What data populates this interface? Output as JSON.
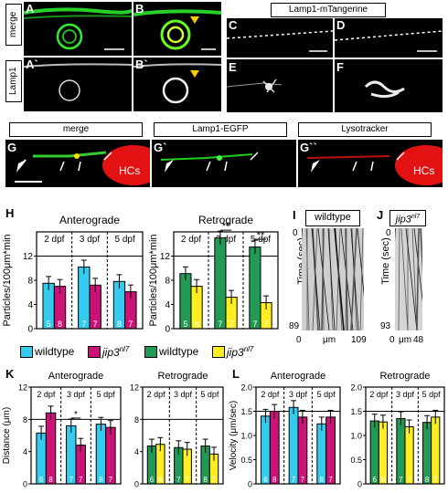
{
  "panel_letters": [
    "A",
    "B",
    "C",
    "D",
    "A`",
    "B`",
    "E",
    "F",
    "G",
    "G`",
    "G``",
    "H",
    "I",
    "J",
    "K",
    "L"
  ],
  "row_tags": {
    "merge": "merge",
    "lamp1": "Lamp1"
  },
  "header_cd": "Lamp1-mTangerine",
  "g_tags": [
    "merge",
    "Lamp1-EGFP",
    "Lysotracker"
  ],
  "hcs": "HCs",
  "colors": {
    "wildtype_ant": "#33ccee",
    "jip3_ant": "#cc1177",
    "wildtype_ret": "#229955",
    "jip3_ret": "#ffee22"
  },
  "legend": {
    "wt": "wildtype",
    "jip3": "jip3",
    "superscript": "nl7"
  },
  "kymo": {
    "i_title": "wildtype",
    "j_title": "jip3",
    "j_sup": "nl7",
    "ylabel": "Time (sec)",
    "xlabel": "μm",
    "i_y0": "0",
    "i_y1": "89",
    "i_x0": "0",
    "i_x1": "109",
    "j_y0": "0",
    "j_y1": "93",
    "j_x0": "0",
    "j_x1": "48"
  },
  "chart_data": [
    {
      "id": "H-anterograde",
      "type": "bar",
      "title": "Anterograde",
      "ylabel": "Particles/100μm*min",
      "ylim": [
        0,
        16
      ],
      "yticks": [
        "0",
        "4",
        "8",
        "12"
      ],
      "stages": [
        "2 dpf",
        "3 dpf",
        "5 dpf"
      ],
      "series": [
        {
          "name": "wildtype",
          "values": [
            7.5,
            10.2,
            7.8
          ],
          "n": [
            "5",
            "7",
            "8"
          ]
        },
        {
          "name": "jip3",
          "values": [
            7.0,
            7.2,
            6.1
          ],
          "n": [
            "8",
            "7",
            "7"
          ]
        }
      ],
      "hline": 12
    },
    {
      "id": "H-retrograde",
      "type": "bar",
      "title": "Retrograde",
      "ylabel": "Particles/100μm*min",
      "ylim": [
        0,
        16
      ],
      "yticks": [
        "0",
        "4",
        "8",
        "12"
      ],
      "stages": [
        "2 dpf",
        "3 dpf",
        "5 dpf"
      ],
      "series": [
        {
          "name": "wildtype",
          "values": [
            9.1,
            15.0,
            13.5
          ],
          "n": [
            "5",
            "7",
            "7"
          ]
        },
        {
          "name": "jip3",
          "values": [
            7.0,
            5.2,
            4.3
          ],
          "n": [
            "8",
            "7",
            "7"
          ]
        }
      ],
      "sig": [
        "**",
        "**"
      ],
      "hline": 12
    },
    {
      "id": "K-anterograde",
      "type": "bar",
      "title": "Anterograde",
      "ylabel": "Distance (μm)",
      "ylim": [
        0,
        12
      ],
      "yticks": [
        "0",
        "4",
        "8",
        "12"
      ],
      "stages": [
        "2 dpf",
        "3 dpf",
        "5 dpf"
      ],
      "series": [
        {
          "name": "wildtype",
          "values": [
            6.3,
            7.2,
            7.4
          ],
          "n": [
            "6",
            "7",
            "8"
          ]
        },
        {
          "name": "jip3",
          "values": [
            8.8,
            4.8,
            7.0
          ],
          "n": [
            "8",
            "7",
            "7"
          ]
        }
      ],
      "sig": [
        "*"
      ],
      "hline": 8
    },
    {
      "id": "K-retrograde",
      "type": "bar",
      "title": "Retrograde",
      "ylabel": "",
      "ylim": [
        0,
        12
      ],
      "yticks": [
        "0",
        "4",
        "8",
        "12"
      ],
      "stages": [
        "2 dpf",
        "3 dpf",
        "5 dpf"
      ],
      "series": [
        {
          "name": "wildtype",
          "values": [
            4.7,
            4.5,
            4.7
          ],
          "n": [
            "6",
            "7",
            "8"
          ]
        },
        {
          "name": "jip3",
          "values": [
            4.9,
            4.3,
            3.7
          ],
          "n": [
            "8",
            "7",
            "7"
          ]
        }
      ],
      "hline": 8
    },
    {
      "id": "L-anterograde",
      "type": "bar",
      "title": "Anterograde",
      "ylabel": "Velocity (μm/sec)",
      "ylim": [
        0,
        2.0
      ],
      "yticks": [
        "0",
        "0.5",
        "1.0",
        "1.5",
        "2.0"
      ],
      "stages": [
        "2 dpf",
        "3 dpf",
        "5 dpf"
      ],
      "series": [
        {
          "name": "wildtype",
          "values": [
            1.4,
            1.58,
            1.24
          ],
          "n": [
            "6",
            "7",
            "8"
          ]
        },
        {
          "name": "jip3",
          "values": [
            1.5,
            1.38,
            1.38
          ],
          "n": [
            "8",
            "7",
            "7"
          ]
        }
      ],
      "hline": 1.5
    },
    {
      "id": "L-retrograde",
      "type": "bar",
      "title": "Retrograde",
      "ylabel": "",
      "ylim": [
        0,
        2.0
      ],
      "yticks": [
        "0",
        "0.5",
        "1.0",
        "1.5",
        "2.0"
      ],
      "stages": [
        "2 dpf",
        "3 dpf",
        "5 dpf"
      ],
      "series": [
        {
          "name": "wildtype",
          "values": [
            1.3,
            1.35,
            1.27
          ],
          "n": [
            "6",
            "7",
            "8"
          ]
        },
        {
          "name": "jip3",
          "values": [
            1.28,
            1.18,
            1.38
          ],
          "n": [
            "8",
            "7",
            "7"
          ]
        }
      ],
      "hline": 1.5
    }
  ]
}
